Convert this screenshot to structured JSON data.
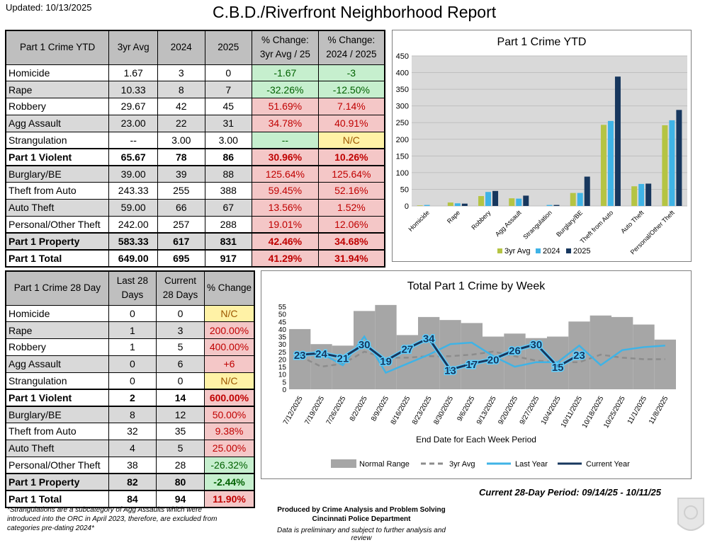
{
  "header": {
    "updated": "Updated: 10/13/2025",
    "title": "C.B.D./Riverfront Neighborhood Report"
  },
  "ytd_table": {
    "headers": [
      "Part 1 Crime YTD",
      "3yr Avg",
      "2024",
      "2025",
      "% Change:\n3yr Avg / 25",
      "% Change:\n2024 / 2025"
    ],
    "rows": [
      {
        "label": "Homicide",
        "avg": "1.67",
        "y2024": "3",
        "y2025": "0",
        "c1": "-1.67",
        "c2": "-3",
        "s1": "neg",
        "s2": "neg",
        "style": ""
      },
      {
        "label": "Rape",
        "avg": "10.33",
        "y2024": "8",
        "y2025": "7",
        "c1": "-32.26%",
        "c2": "-12.50%",
        "s1": "neg",
        "s2": "neg",
        "style": "grey"
      },
      {
        "label": "Robbery",
        "avg": "29.67",
        "y2024": "42",
        "y2025": "45",
        "c1": "51.69%",
        "c2": "7.14%",
        "s1": "pos",
        "s2": "pos",
        "style": ""
      },
      {
        "label": "Agg Assault",
        "avg": "23.00",
        "y2024": "22",
        "y2025": "31",
        "c1": "34.78%",
        "c2": "40.91%",
        "s1": "pos",
        "s2": "pos",
        "style": "grey"
      },
      {
        "label": "Strangulation",
        "avg": "--",
        "y2024": "3.00",
        "y2025": "3.00",
        "c1": "--",
        "c2": "N/C",
        "s1": "neg",
        "s2": "nc",
        "style": ""
      },
      {
        "label": "Part 1 Violent",
        "avg": "65.67",
        "y2024": "78",
        "y2025": "86",
        "c1": "30.96%",
        "c2": "10.26%",
        "s1": "pos",
        "s2": "pos",
        "style": "bold"
      },
      {
        "label": "Burglary/BE",
        "avg": "39.00",
        "y2024": "39",
        "y2025": "88",
        "c1": "125.64%",
        "c2": "125.64%",
        "s1": "pos",
        "s2": "pos",
        "style": "grey"
      },
      {
        "label": "Theft from Auto",
        "avg": "243.33",
        "y2024": "255",
        "y2025": "388",
        "c1": "59.45%",
        "c2": "52.16%",
        "s1": "pos",
        "s2": "pos",
        "style": ""
      },
      {
        "label": "Auto Theft",
        "avg": "59.00",
        "y2024": "66",
        "y2025": "67",
        "c1": "13.56%",
        "c2": "1.52%",
        "s1": "pos",
        "s2": "pos",
        "style": "grey"
      },
      {
        "label": "Personal/Other Theft",
        "avg": "242.00",
        "y2024": "257",
        "y2025": "288",
        "c1": "19.01%",
        "c2": "12.06%",
        "s1": "pos",
        "s2": "pos",
        "style": ""
      },
      {
        "label": "Part 1 Property",
        "avg": "583.33",
        "y2024": "617",
        "y2025": "831",
        "c1": "42.46%",
        "c2": "34.68%",
        "s1": "pos",
        "s2": "pos",
        "style": "bold grey"
      },
      {
        "label": "Part 1 Total",
        "avg": "649.00",
        "y2024": "695",
        "y2025": "917",
        "c1": "41.29%",
        "c2": "31.94%",
        "s1": "pos",
        "s2": "pos",
        "style": "bold"
      }
    ]
  },
  "d28_table": {
    "headers": [
      "Part 1 Crime 28 Day",
      "Last 28\nDays",
      "Current\n28 Days",
      "% Change"
    ],
    "rows": [
      {
        "label": "Homicide",
        "last": "0",
        "cur": "0",
        "chg": "N/C",
        "s": "nc",
        "style": ""
      },
      {
        "label": "Rape",
        "last": "1",
        "cur": "3",
        "chg": "200.00%",
        "s": "pos",
        "style": "grey"
      },
      {
        "label": "Robbery",
        "last": "1",
        "cur": "5",
        "chg": "400.00%",
        "s": "pos",
        "style": ""
      },
      {
        "label": "Agg Assault",
        "last": "0",
        "cur": "6",
        "chg": "+6",
        "s": "pos",
        "style": "grey"
      },
      {
        "label": "Strangulation",
        "last": "0",
        "cur": "0",
        "chg": "N/C",
        "s": "nc",
        "style": ""
      },
      {
        "label": "Part 1 Violent",
        "last": "2",
        "cur": "14",
        "chg": "600.00%",
        "s": "pos",
        "style": "bold"
      },
      {
        "label": "Burglary/BE",
        "last": "8",
        "cur": "12",
        "chg": "50.00%",
        "s": "pos",
        "style": "grey"
      },
      {
        "label": "Theft from Auto",
        "last": "32",
        "cur": "35",
        "chg": "9.38%",
        "s": "pos",
        "style": ""
      },
      {
        "label": "Auto Theft",
        "last": "4",
        "cur": "5",
        "chg": "25.00%",
        "s": "pos",
        "style": "grey"
      },
      {
        "label": "Personal/Other Theft",
        "last": "38",
        "cur": "28",
        "chg": "-26.32%",
        "s": "neg",
        "style": ""
      },
      {
        "label": "Part 1 Property",
        "last": "82",
        "cur": "80",
        "chg": "-2.44%",
        "s": "neg",
        "style": "bold grey"
      },
      {
        "label": "Part 1 Total",
        "last": "84",
        "cur": "94",
        "chg": "11.90%",
        "s": "pos",
        "style": "bold"
      }
    ]
  },
  "chart_data": [
    {
      "type": "bar",
      "title": "Part 1 Crime YTD",
      "categories": [
        "Homicide",
        "Rape",
        "Robbery",
        "Agg Assault",
        "Strangulation",
        "Burglary/BE",
        "Theft from Auto",
        "Auto Theft",
        "Personal/Other Theft"
      ],
      "series": [
        {
          "name": "3yr Avg",
          "color": "#b5c443",
          "values": [
            1.67,
            10.33,
            29.67,
            23,
            0,
            39,
            243.33,
            59,
            242
          ]
        },
        {
          "name": "2024",
          "color": "#3fb3e6",
          "values": [
            3,
            8,
            42,
            22,
            3,
            39,
            255,
            66,
            257
          ]
        },
        {
          "name": "2025",
          "color": "#17375e",
          "values": [
            0,
            7,
            45,
            31,
            3,
            88,
            388,
            67,
            288
          ]
        }
      ],
      "ylim": [
        0,
        450
      ],
      "yticks": [
        0,
        50,
        100,
        150,
        200,
        250,
        300,
        350,
        400,
        450
      ],
      "legend": "bottom"
    },
    {
      "type": "line",
      "title": "Total Part 1 Crime by Week",
      "xlabel": "End Date for Each Week Period",
      "categories": [
        "7/12/2025",
        "7/19/2025",
        "7/26/2025",
        "8/2/2025",
        "8/9/2025",
        "8/16/2025",
        "8/23/2025",
        "8/30/2025",
        "9/6/2025",
        "9/13/2025",
        "9/20/2025",
        "9/27/2025",
        "10/4/2025",
        "10/11/2025",
        "10/18/2025",
        "10/25/2025",
        "11/1/2025",
        "11/8/2025"
      ],
      "normal_range": [
        40,
        30,
        29,
        52,
        56,
        36,
        48,
        46,
        44,
        35,
        37,
        34,
        35,
        45,
        49,
        48,
        43,
        33
      ],
      "avg3yr": [
        22,
        15,
        17,
        25,
        21,
        21,
        22,
        22,
        23,
        25,
        22,
        19,
        18,
        18,
        23,
        21,
        20,
        20
      ],
      "last_year": [
        23,
        24,
        16,
        35,
        11,
        17,
        23,
        30,
        31,
        22,
        15,
        18,
        18,
        29,
        16,
        26,
        28,
        29
      ],
      "current_year": [
        23,
        24,
        21,
        30,
        19,
        27,
        34,
        13,
        17,
        20,
        26,
        30,
        15,
        23
      ],
      "ylim": [
        0,
        55
      ],
      "yticks": [
        0,
        5,
        10,
        15,
        20,
        25,
        30,
        35,
        40,
        45,
        50,
        55
      ],
      "legend": [
        "Normal Range",
        "3yr Avg",
        "Last Year",
        "Current Year"
      ],
      "colors": {
        "normal": "#a6a6a6",
        "avg": "#8c8c8c",
        "last": "#3fb3e6",
        "current": "#17375e"
      }
    }
  ],
  "footer": {
    "period": "Current 28-Day Period:  09/14/25 - 10/11/25",
    "note": "*Strangulations are a subcategory of Agg Assaults which were introduced into the ORC in April 2023, therefore, are excluded from categories pre-dating 2024*",
    "producer_line1": "Produced by Crime Analysis and Problem Solving",
    "producer_line2": "Cincinnati Police Department",
    "disclaimer": "Data is preliminary and subject to further analysis and review"
  }
}
